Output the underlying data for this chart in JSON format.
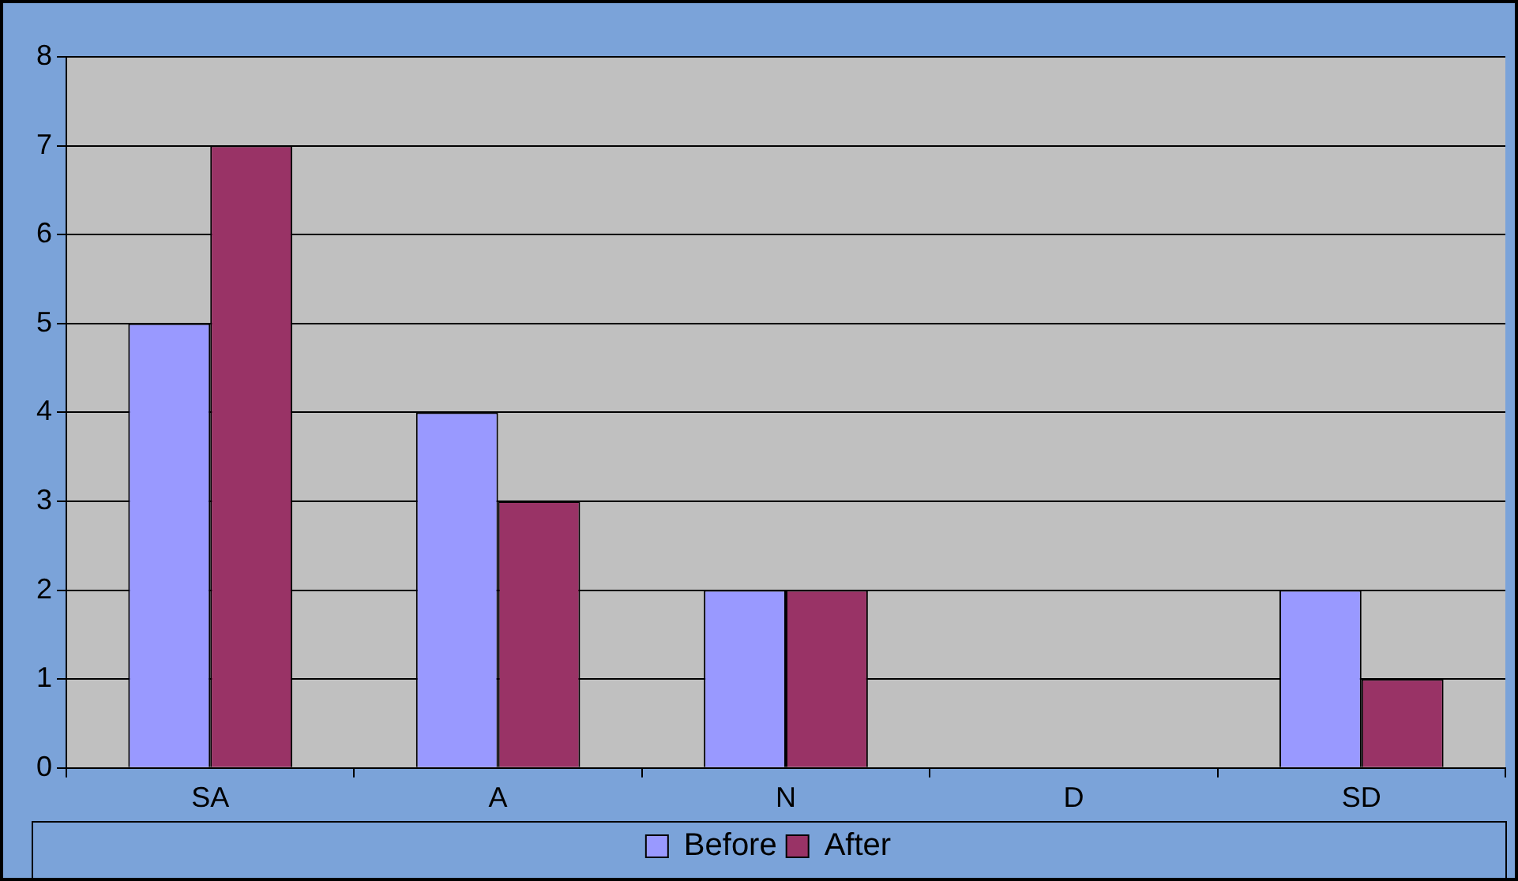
{
  "chart_data": {
    "type": "bar",
    "categories": [
      "SA",
      "A",
      "N",
      "D",
      "SD"
    ],
    "series": [
      {
        "name": "Before",
        "color": "#9999ff",
        "values": [
          5,
          4,
          2,
          0,
          2
        ]
      },
      {
        "name": "After",
        "color": "#993366",
        "values": [
          7,
          3,
          2,
          0,
          1
        ]
      }
    ],
    "ylim": [
      0,
      8
    ],
    "yticks": [
      0,
      1,
      2,
      3,
      4,
      5,
      6,
      7,
      8
    ],
    "grid": "y",
    "legend": "bottom"
  }
}
